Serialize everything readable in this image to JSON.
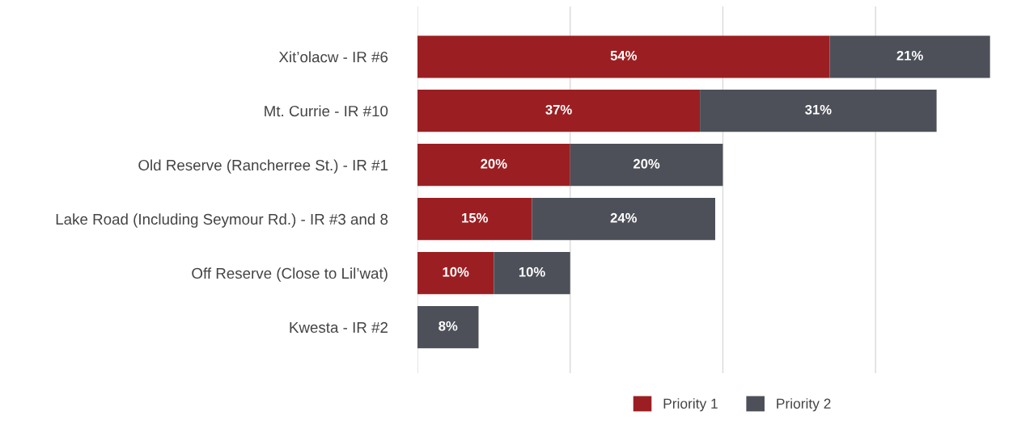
{
  "chart_data": {
    "type": "bar",
    "orientation": "horizontal",
    "stacked": true,
    "categories": [
      "Xit’olacw - IR #6",
      "Mt. Currie - IR #10",
      "Old Reserve (Rancherree St.) - IR #1",
      "Lake Road (Including Seymour Rd.) - IR #3 and 8",
      "Off Reserve (Close to Lil’wat)",
      "Kwesta - IR #2"
    ],
    "series": [
      {
        "name": "Priority 1",
        "color": "#9b1f22",
        "values": [
          54,
          37,
          20,
          15,
          10,
          0
        ],
        "value_labels": [
          "54%",
          "37%",
          "20%",
          "15%",
          "10%",
          null
        ]
      },
      {
        "name": "Priority 2",
        "color": "#4d5059",
        "values": [
          21,
          31,
          20,
          24,
          10,
          8
        ],
        "value_labels": [
          "21%",
          "31%",
          "20%",
          "24%",
          "10%",
          "8%"
        ]
      }
    ],
    "xticks": [
      {
        "value": 0,
        "label": null
      },
      {
        "value": 20,
        "label": null
      },
      {
        "value": 40,
        "label": null
      },
      {
        "value": 60,
        "label": null
      }
    ],
    "tick_labels": "y",
    "grid": "x",
    "legend": "bottom"
  }
}
